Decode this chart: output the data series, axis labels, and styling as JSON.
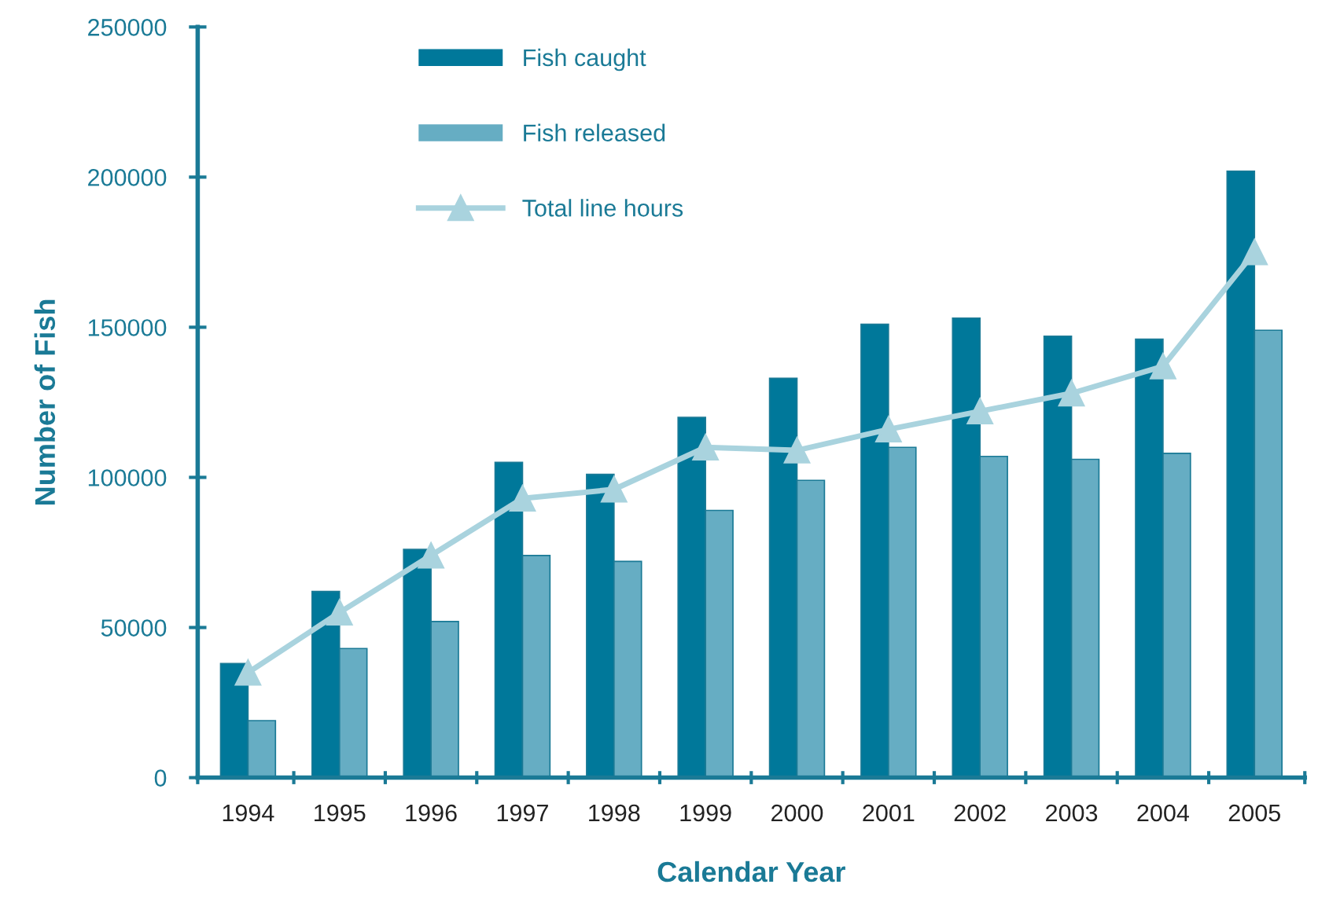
{
  "chart_data": {
    "type": "bar",
    "xlabel": "Calendar Year",
    "ylabel": "Number of Fish",
    "categories": [
      "1994",
      "1995",
      "1996",
      "1997",
      "1998",
      "1999",
      "2000",
      "2001",
      "2002",
      "2003",
      "2004",
      "2005"
    ],
    "series": [
      {
        "name": "Fish caught",
        "color": "#00789a",
        "values": [
          38000,
          62000,
          76000,
          105000,
          101000,
          120000,
          133000,
          151000,
          153000,
          147000,
          146000,
          202000
        ]
      },
      {
        "name": "Fish released",
        "color": "#66adc3",
        "values": [
          19000,
          43000,
          52000,
          74000,
          72000,
          89000,
          99000,
          110000,
          107000,
          106000,
          108000,
          149000
        ]
      },
      {
        "name": "Total line hours",
        "type": "line",
        "color": "#a9d3de",
        "marker": "triangle",
        "values": [
          35000,
          55000,
          74000,
          93000,
          96000,
          110000,
          109000,
          116000,
          122000,
          128000,
          137000,
          175000
        ]
      }
    ],
    "ylim": [
      0,
      250000
    ],
    "yticks": [
      0,
      50000,
      100000,
      150000,
      200000,
      250000
    ],
    "grid": false,
    "legend": "top left"
  }
}
